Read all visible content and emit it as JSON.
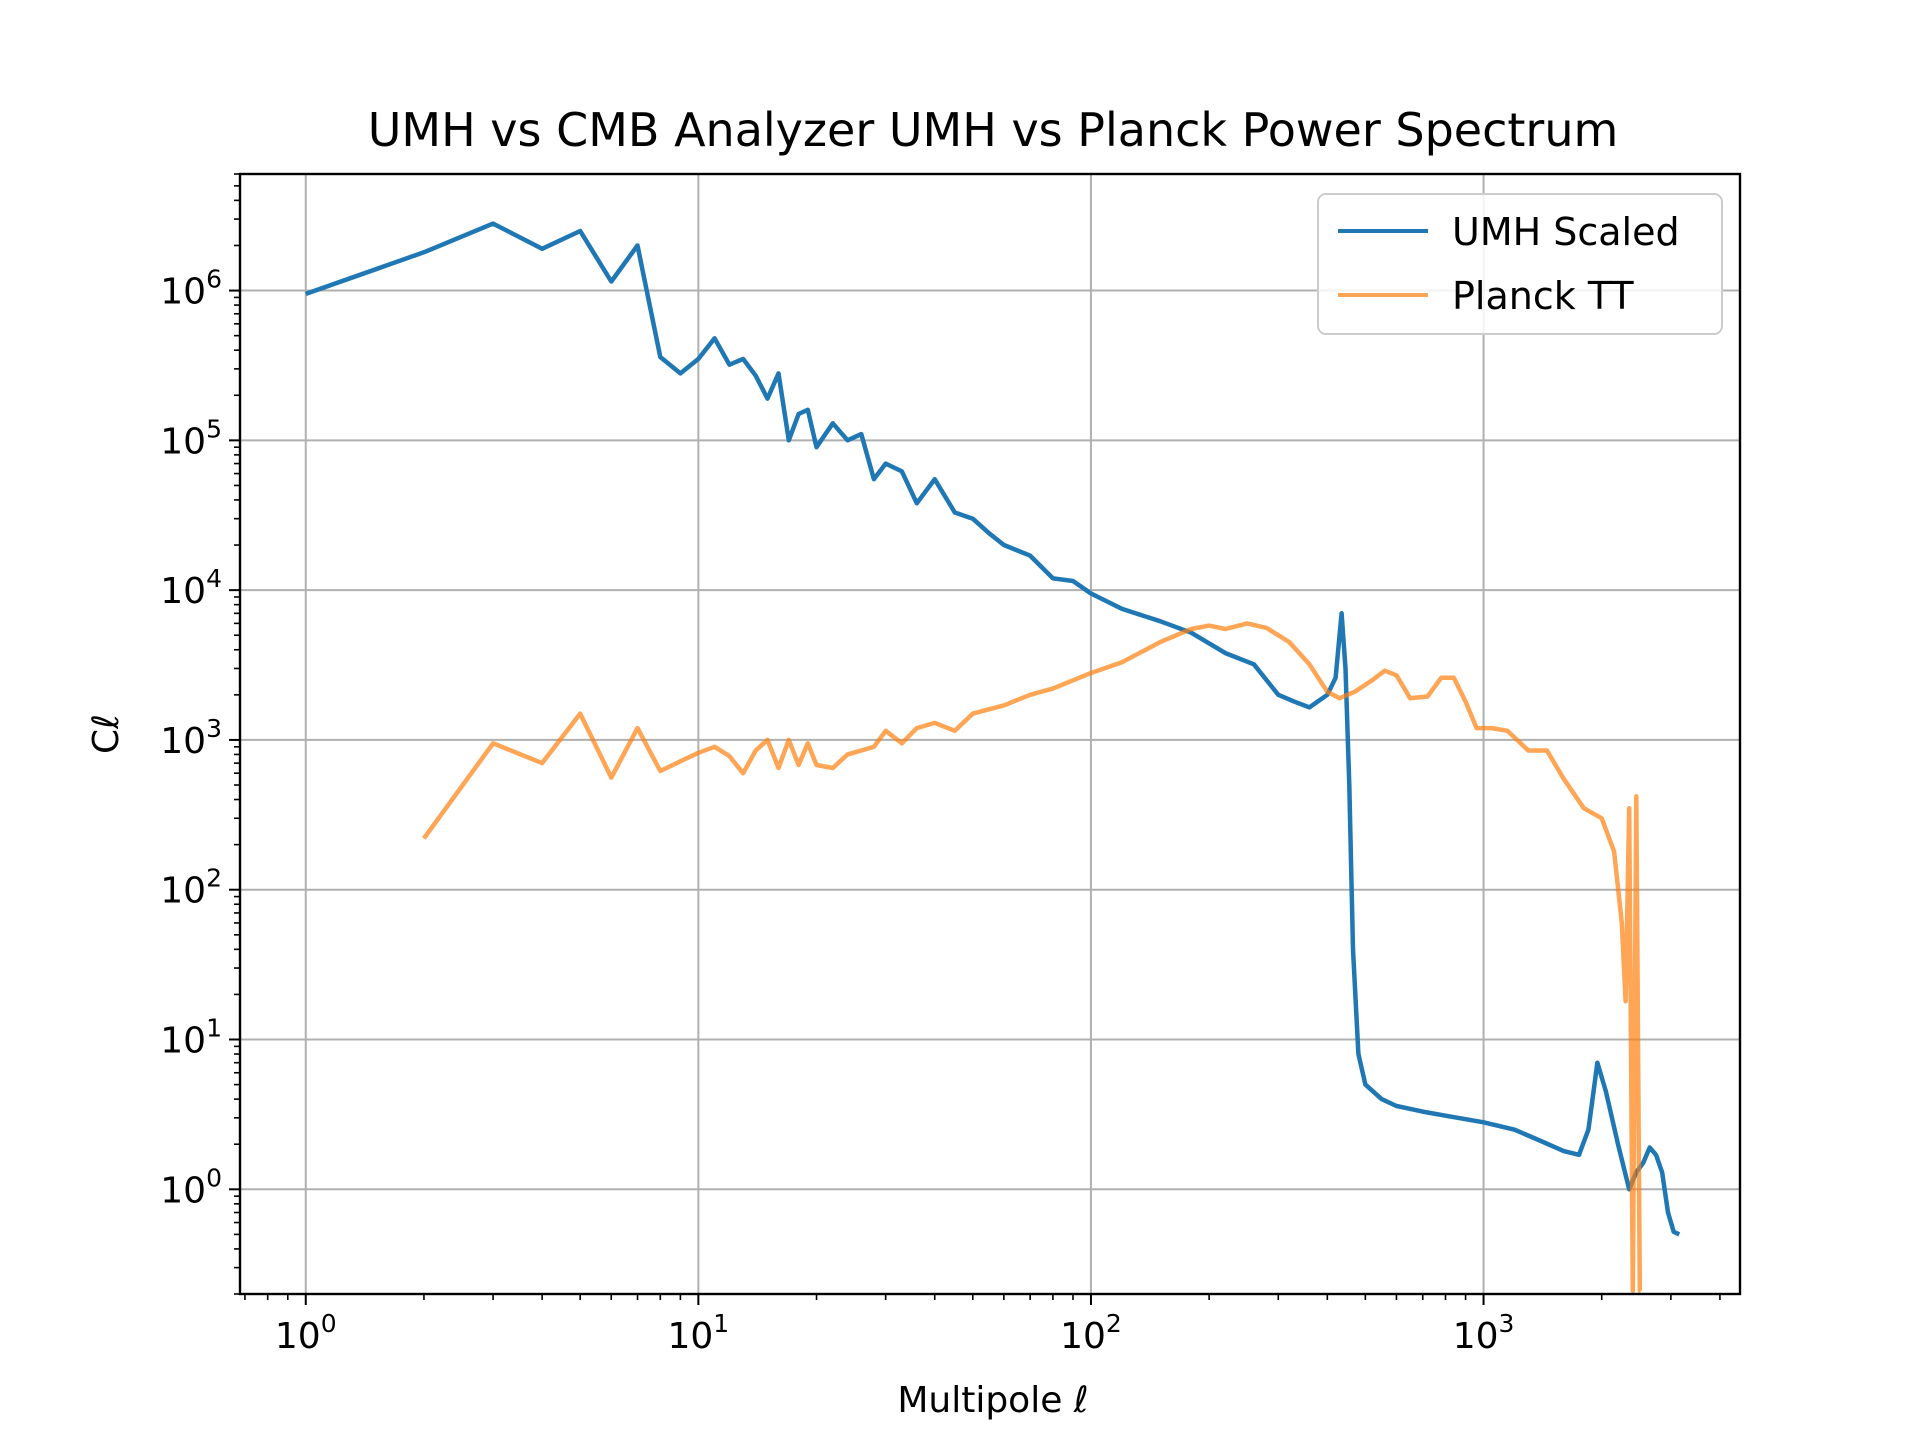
{
  "chart_data": {
    "type": "line",
    "title": "UMH vs CMB Analyzer UMH vs Planck Power Spectrum",
    "xlabel": "Multipole ℓ",
    "ylabel": "Cℓ",
    "xscale": "log",
    "yscale": "log",
    "xlim": [
      0.68,
      4500
    ],
    "ylim": [
      0.2,
      6000000
    ],
    "grid": true,
    "legend_position": "top-right",
    "x_ticks": [
      {
        "base": "10",
        "exp": "0",
        "value": 1
      },
      {
        "base": "10",
        "exp": "1",
        "value": 10
      },
      {
        "base": "10",
        "exp": "2",
        "value": 100
      },
      {
        "base": "10",
        "exp": "3",
        "value": 1000
      }
    ],
    "y_ticks": [
      {
        "base": "10",
        "exp": "0",
        "value": 1
      },
      {
        "base": "10",
        "exp": "1",
        "value": 10
      },
      {
        "base": "10",
        "exp": "2",
        "value": 100
      },
      {
        "base": "10",
        "exp": "3",
        "value": 1000
      },
      {
        "base": "10",
        "exp": "4",
        "value": 10000
      },
      {
        "base": "10",
        "exp": "5",
        "value": 100000
      },
      {
        "base": "10",
        "exp": "6",
        "value": 1000000
      }
    ],
    "series": [
      {
        "name": "UMH Scaled",
        "color": "#1f77b4",
        "opacity": 1,
        "points": [
          [
            1,
            950000
          ],
          [
            2,
            1800000
          ],
          [
            3,
            2800000
          ],
          [
            4,
            1900000
          ],
          [
            5,
            2500000
          ],
          [
            6,
            1150000
          ],
          [
            7,
            2000000
          ],
          [
            8,
            360000
          ],
          [
            9,
            280000
          ],
          [
            10,
            350000
          ],
          [
            11,
            480000
          ],
          [
            12,
            320000
          ],
          [
            13,
            350000
          ],
          [
            14,
            270000
          ],
          [
            15,
            190000
          ],
          [
            16,
            280000
          ],
          [
            17,
            100000
          ],
          [
            18,
            150000
          ],
          [
            19,
            160000
          ],
          [
            20,
            90000
          ],
          [
            22,
            130000
          ],
          [
            24,
            100000
          ],
          [
            26,
            110000
          ],
          [
            28,
            55000
          ],
          [
            30,
            70000
          ],
          [
            33,
            62000
          ],
          [
            36,
            38000
          ],
          [
            40,
            55000
          ],
          [
            45,
            33000
          ],
          [
            50,
            30000
          ],
          [
            55,
            24000
          ],
          [
            60,
            20000
          ],
          [
            70,
            17000
          ],
          [
            80,
            12000
          ],
          [
            90,
            11500
          ],
          [
            100,
            9500
          ],
          [
            120,
            7500
          ],
          [
            150,
            6200
          ],
          [
            180,
            5200
          ],
          [
            220,
            3800
          ],
          [
            260,
            3200
          ],
          [
            300,
            2000
          ],
          [
            330,
            1800
          ],
          [
            360,
            1650
          ],
          [
            400,
            2000
          ],
          [
            420,
            2600
          ],
          [
            435,
            7000
          ],
          [
            445,
            3000
          ],
          [
            455,
            500
          ],
          [
            465,
            40
          ],
          [
            480,
            8
          ],
          [
            500,
            5
          ],
          [
            550,
            4
          ],
          [
            600,
            3.6
          ],
          [
            700,
            3.3
          ],
          [
            800,
            3.1
          ],
          [
            1000,
            2.8
          ],
          [
            1200,
            2.5
          ],
          [
            1400,
            2.1
          ],
          [
            1600,
            1.8
          ],
          [
            1750,
            1.7
          ],
          [
            1850,
            2.5
          ],
          [
            1950,
            7
          ],
          [
            2050,
            4.5
          ],
          [
            2200,
            2
          ],
          [
            2350,
            1
          ],
          [
            2450,
            1.3
          ],
          [
            2550,
            1.5
          ],
          [
            2650,
            1.9
          ],
          [
            2750,
            1.7
          ],
          [
            2850,
            1.3
          ],
          [
            2950,
            0.7
          ],
          [
            3050,
            0.52
          ],
          [
            3150,
            0.5
          ]
        ]
      },
      {
        "name": "Planck TT",
        "color": "#ff7f0e",
        "opacity": 0.7,
        "points": [
          [
            2,
            220
          ],
          [
            3,
            950
          ],
          [
            4,
            700
          ],
          [
            5,
            1500
          ],
          [
            6,
            560
          ],
          [
            7,
            1200
          ],
          [
            8,
            620
          ],
          [
            9,
            720
          ],
          [
            10,
            820
          ],
          [
            11,
            900
          ],
          [
            12,
            780
          ],
          [
            13,
            600
          ],
          [
            14,
            850
          ],
          [
            15,
            1000
          ],
          [
            16,
            650
          ],
          [
            17,
            1000
          ],
          [
            18,
            680
          ],
          [
            19,
            950
          ],
          [
            20,
            680
          ],
          [
            22,
            650
          ],
          [
            24,
            800
          ],
          [
            26,
            850
          ],
          [
            28,
            900
          ],
          [
            30,
            1150
          ],
          [
            33,
            950
          ],
          [
            36,
            1200
          ],
          [
            40,
            1300
          ],
          [
            45,
            1150
          ],
          [
            50,
            1500
          ],
          [
            60,
            1700
          ],
          [
            70,
            2000
          ],
          [
            80,
            2200
          ],
          [
            90,
            2500
          ],
          [
            100,
            2800
          ],
          [
            120,
            3300
          ],
          [
            150,
            4500
          ],
          [
            180,
            5500
          ],
          [
            200,
            5800
          ],
          [
            220,
            5500
          ],
          [
            250,
            6000
          ],
          [
            280,
            5600
          ],
          [
            320,
            4500
          ],
          [
            360,
            3200
          ],
          [
            400,
            2100
          ],
          [
            430,
            1900
          ],
          [
            470,
            2100
          ],
          [
            520,
            2500
          ],
          [
            560,
            2900
          ],
          [
            600,
            2700
          ],
          [
            650,
            1900
          ],
          [
            720,
            1950
          ],
          [
            780,
            2600
          ],
          [
            840,
            2600
          ],
          [
            900,
            1800
          ],
          [
            960,
            1200
          ],
          [
            1050,
            1200
          ],
          [
            1150,
            1150
          ],
          [
            1300,
            850
          ],
          [
            1450,
            850
          ],
          [
            1600,
            550
          ],
          [
            1800,
            350
          ],
          [
            2000,
            300
          ],
          [
            2150,
            180
          ],
          [
            2250,
            60
          ],
          [
            2300,
            18
          ],
          [
            2350,
            350
          ],
          [
            2400,
            0.21
          ],
          [
            2450,
            420
          ],
          [
            2500,
            0.21
          ],
          [
            2510,
            0.21
          ]
        ]
      }
    ]
  }
}
